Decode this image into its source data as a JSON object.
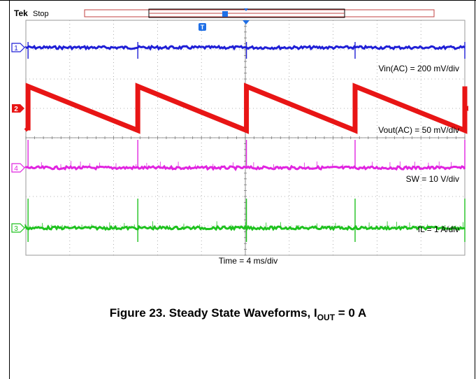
{
  "scope": {
    "brand": "Tek",
    "status": "Stop",
    "trigger_label": "T",
    "time_annotation": "Time = 4 ms/div",
    "colors": {
      "ch1": "#1f1fd6",
      "ch2": "#e81515",
      "ch3": "#1ec21e",
      "ch4": "#e025e0",
      "trigger": "#1f6fe6",
      "grid": "#9a9a9a"
    },
    "channels": [
      {
        "id": "1",
        "annotation": "Vin(AC) = 200 mV/div"
      },
      {
        "id": "2",
        "annotation": "Vout(AC) = 50 mV/div"
      },
      {
        "id": "4",
        "annotation": "SW = 10 V/div"
      },
      {
        "id": "3",
        "annotation": "IL = 1 A/div"
      }
    ]
  },
  "chart_data": {
    "type": "line",
    "x_unit": "ms",
    "xlim": [
      0,
      40
    ],
    "x_divisions": 10,
    "y_divisions": 8,
    "switching_times_ms": [
      0.2,
      10.2,
      20.1,
      30.0,
      40.0
    ],
    "series": [
      {
        "name": "Vin(AC)",
        "channel": "1",
        "scale": "200 mV/div",
        "shape": "flat-noisy",
        "level_div": 0
      },
      {
        "name": "Vout(AC)",
        "channel": "2",
        "scale": "50 mV/div",
        "shape": "sawtooth",
        "rise_div": 1.5
      },
      {
        "name": "SW",
        "channel": "4",
        "scale": "10 V/div",
        "shape": "flat-with-spikes",
        "level_div": 0
      },
      {
        "name": "IL",
        "channel": "3",
        "scale": "1 A/div",
        "shape": "flat-with-spikes",
        "level_div": 0
      }
    ]
  },
  "caption": {
    "text": "Figure 23. Steady State Waveforms, I",
    "sub": "OUT",
    "suffix": " = 0 A"
  }
}
